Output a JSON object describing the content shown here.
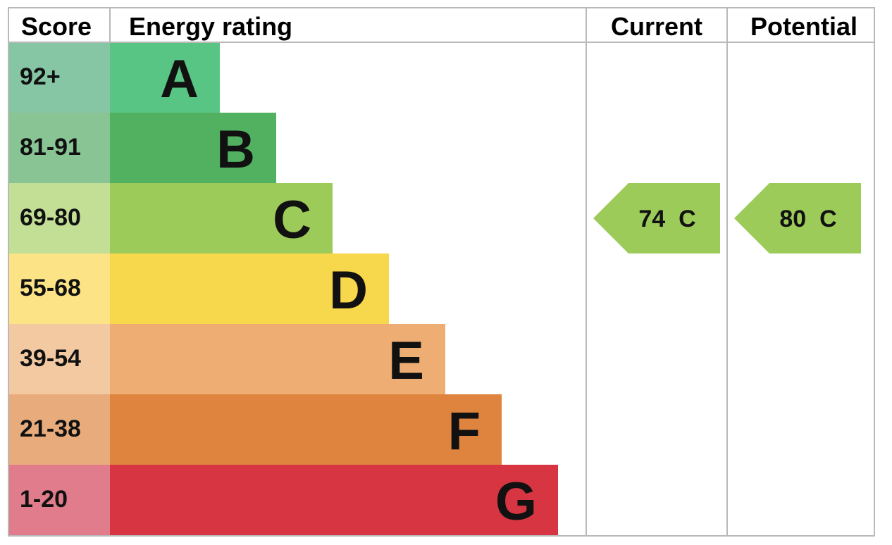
{
  "chart_data": {
    "type": "table",
    "headers": {
      "score": "Score",
      "energy_rating": "Energy rating",
      "current": "Current",
      "potential": "Potential"
    },
    "bands": [
      {
        "score": "92+",
        "letter": "A",
        "color": "#58c584",
        "score_bg": "#86c6a5"
      },
      {
        "score": "81-91",
        "letter": "B",
        "color": "#52b161",
        "score_bg": "#89c594"
      },
      {
        "score": "69-80",
        "letter": "C",
        "color": "#9ccb5a",
        "score_bg": "#c2df95"
      },
      {
        "score": "55-68",
        "letter": "D",
        "color": "#f7d74b",
        "score_bg": "#fbe386"
      },
      {
        "score": "39-54",
        "letter": "E",
        "color": "#eead72",
        "score_bg": "#f3c9a2"
      },
      {
        "score": "21-38",
        "letter": "F",
        "color": "#df843e",
        "score_bg": "#e8ac7c"
      },
      {
        "score": "1-20",
        "letter": "G",
        "color": "#d63541",
        "score_bg": "#e07c8b"
      }
    ],
    "current": {
      "value": 74,
      "letter": "C",
      "label": "74  C",
      "color": "#9ccb5a"
    },
    "potential": {
      "value": 80,
      "letter": "C",
      "label": "80  C",
      "color": "#9ccb5a"
    }
  }
}
